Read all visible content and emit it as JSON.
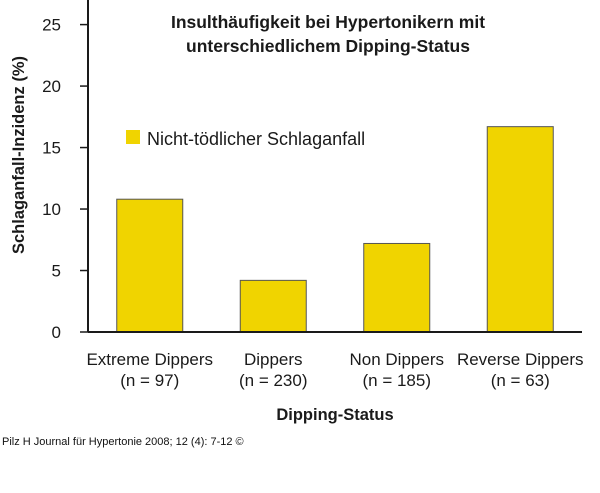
{
  "chart_data": {
    "type": "bar",
    "title_lines": [
      "Insulthäufigkeit bei Hypertonikern mit",
      "unterschiedlichem Dipping-Status"
    ],
    "categories": [
      {
        "name": "Extreme Dippers",
        "n": "(n = 97)"
      },
      {
        "name": "Dippers",
        "n": "(n = 230)"
      },
      {
        "name": "Non Dippers",
        "n": "(n = 185)"
      },
      {
        "name": "Reverse Dippers",
        "n": "(n = 63)"
      }
    ],
    "series": [
      {
        "name": "Nicht-tödlicher Schlaganfall",
        "color": "#f0d400",
        "values": [
          10.8,
          4.2,
          7.2,
          16.7
        ]
      }
    ],
    "xlabel": "Dipping-Status",
    "ylabel": "Schlaganfall-Inzidenz (%)",
    "ylim": [
      0,
      27
    ],
    "yticks": [
      0,
      5,
      10,
      15,
      20,
      25
    ],
    "legend_position": "inside-upper-left",
    "grid": false
  },
  "source": "Pilz H Journal für Hypertonie 2008; 12 (4): 7-12 ©"
}
